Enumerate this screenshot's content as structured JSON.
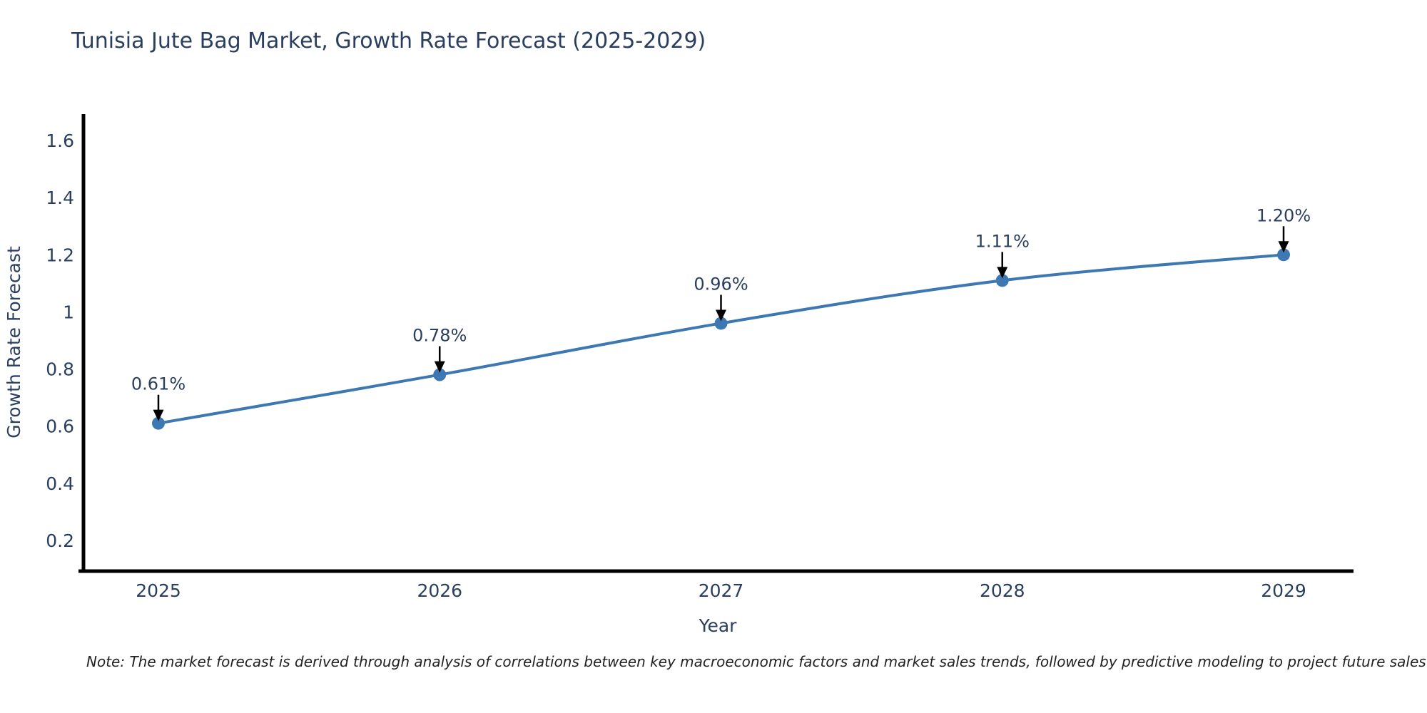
{
  "title": "Tunisia Jute Bag Market, Growth Rate Forecast (2025-2029)",
  "note": "Note: The market forecast is derived through analysis of correlations between key macroeconomic factors and market sales trends, followed by predictive modeling to project future sales",
  "chart_data": {
    "type": "line",
    "title": "Tunisia Jute Bag Market, Growth Rate Forecast (2025-2029)",
    "xlabel": "Year",
    "ylabel": "Growth Rate Forecast",
    "categories": [
      "2025",
      "2026",
      "2027",
      "2028",
      "2029"
    ],
    "series": [
      {
        "name": "Growth Rate Forecast",
        "values": [
          0.61,
          0.78,
          0.96,
          1.11,
          1.2
        ]
      }
    ],
    "point_labels": [
      "0.61%",
      "0.78%",
      "0.96%",
      "1.11%",
      "1.20%"
    ],
    "y_ticks": [
      0.2,
      0.4,
      0.6,
      0.8,
      1,
      1.2,
      1.4,
      1.6
    ],
    "ylim": [
      0.095,
      1.695
    ],
    "grid": false,
    "legend_position": "none",
    "line_shape": "spline",
    "annotation_style": "arrow-down-to-point",
    "colors": {
      "line": "#3d78b2",
      "marker": "#3d78b2",
      "axis": "#000000",
      "text": "#2a3f5f",
      "arrow": "#000000",
      "background": "#ffffff"
    }
  }
}
